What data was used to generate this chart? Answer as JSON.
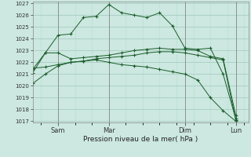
{
  "background_color": "#cce8e0",
  "grid_color_major": "#a0c8bc",
  "grid_color_minor": "#b8dcd4",
  "line_color": "#1a5c2a",
  "xlabel": "Pression niveau de la mer( hPa )",
  "ylim_min": 1017,
  "ylim_max": 1027,
  "yticks": [
    1017,
    1018,
    1019,
    1020,
    1021,
    1022,
    1023,
    1024,
    1025,
    1026,
    1027
  ],
  "xtick_labels": [
    "Sam",
    "Mar",
    "Dim",
    "Lun"
  ],
  "xtick_positions": [
    1,
    3,
    6,
    8
  ],
  "xlim_min": 0,
  "xlim_max": 8.5,
  "x": [
    0,
    0.5,
    1,
    1.5,
    2,
    2.5,
    3,
    3.5,
    4,
    4.5,
    5,
    5.5,
    6,
    6.5,
    7,
    7.5,
    8
  ],
  "series1": [
    1021.1,
    1022.8,
    1024.3,
    1024.4,
    1025.8,
    1025.9,
    1026.9,
    1026.2,
    1026.0,
    1025.8,
    1026.2,
    1025.1,
    1023.2,
    1023.1,
    1023.2,
    1021.0,
    1017.2
  ],
  "series2": [
    1021.4,
    1022.8,
    1022.8,
    1022.3,
    1022.4,
    1022.5,
    1022.6,
    1022.8,
    1023.0,
    1023.1,
    1023.2,
    1023.1,
    1023.1,
    1023.0,
    1022.5,
    1022.3,
    1017.5
  ],
  "series3": [
    1021.5,
    1021.6,
    1021.8,
    1022.0,
    1022.1,
    1022.3,
    1022.4,
    1022.5,
    1022.6,
    1022.8,
    1022.9,
    1022.9,
    1022.8,
    1022.6,
    1022.4,
    1022.2,
    1017.1
  ],
  "series4": [
    1020.2,
    1021.0,
    1021.7,
    1022.0,
    1022.1,
    1022.2,
    1022.0,
    1021.8,
    1021.7,
    1021.6,
    1021.4,
    1021.2,
    1021.0,
    1020.5,
    1019.0,
    1017.9,
    1017.0
  ],
  "figwidth": 3.2,
  "figheight": 2.0,
  "dpi": 100
}
